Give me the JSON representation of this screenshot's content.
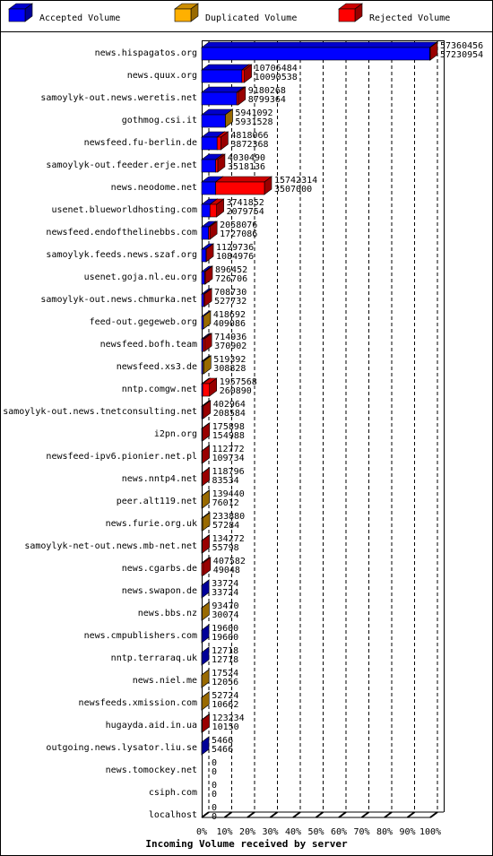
{
  "chart_data": {
    "type": "bar3d-stacked-horizontal",
    "title": "Incoming Volume received by server",
    "categories": [
      "news.hispagatos.org",
      "news.quux.org",
      "samoylyk-out.news.weretis.net",
      "gothmog.csi.it",
      "newsfeed.fu-berlin.de",
      "samoylyk-out.feeder.erje.net",
      "news.neodome.net",
      "usenet.blueworldhosting.com",
      "newsfeed.endofthelinebbs.com",
      "samoylyk.feeds.news.szaf.org",
      "usenet.goja.nl.eu.org",
      "samoylyk-out.news.chmurka.net",
      "feed-out.gegeweb.org",
      "newsfeed.bofh.team",
      "newsfeed.xs3.de",
      "nntp.comgw.net",
      "samoylyk-out.news.tnetconsulting.net",
      "i2pn.org",
      "newsfeed-ipv6.pionier.net.pl",
      "news.nntp4.net",
      "peer.alt119.net",
      "news.furie.org.uk",
      "samoylyk-net-out.news.mb-net.net",
      "news.cgarbs.de",
      "news.swapon.de",
      "news.bbs.nz",
      "news.cmpublishers.com",
      "nntp.terraraq.uk",
      "news.niel.me",
      "newsfeeds.xmission.com",
      "hugayda.aid.in.ua",
      "outgoing.news.lysator.liu.se",
      "news.tomockey.net",
      "csiph.com",
      "localhost"
    ],
    "totals": [
      57360456,
      10706484,
      9180268,
      5941092,
      4818066,
      4030490,
      15742314,
      3741852,
      2058076,
      1129736,
      896452,
      708730,
      418692,
      714936,
      519392,
      1957568,
      402964,
      175898,
      112772,
      118796,
      139440,
      233880,
      134272,
      407582,
      33724,
      93470,
      19600,
      12718,
      17524,
      52724,
      123234,
      5466,
      0,
      0,
      0
    ],
    "series": [
      {
        "name": "Accepted Volume",
        "color": "#0000ff",
        "values": [
          57230954,
          10090538,
          8799364,
          5931528,
          3872368,
          3518136,
          3507000,
          2079754,
          1727086,
          1084976,
          726706,
          527732,
          409086,
          370902,
          308828,
          260890,
          208584,
          154988,
          109734,
          83534,
          76012,
          57284,
          55798,
          49048,
          33724,
          30074,
          19600,
          12718,
          12056,
          10662,
          10150,
          5466,
          0,
          0,
          0
        ]
      },
      {
        "name": "Duplicated Volume",
        "color": "#ffb000",
        "values": [
          0,
          0,
          0,
          9564,
          0,
          0,
          0,
          0,
          0,
          0,
          0,
          0,
          9606,
          0,
          210564,
          0,
          0,
          0,
          0,
          0,
          63428,
          176596,
          0,
          0,
          0,
          63396,
          0,
          0,
          5468,
          42062,
          0,
          0,
          0,
          0,
          0
        ]
      },
      {
        "name": "Rejected Volume",
        "color": "#ff0000",
        "values": [
          129502,
          615946,
          380904,
          0,
          945698,
          512354,
          12235314,
          1662098,
          330990,
          44760,
          169746,
          180998,
          0,
          344034,
          0,
          1696678,
          194380,
          20910,
          3038,
          35262,
          0,
          0,
          78474,
          358534,
          0,
          0,
          0,
          0,
          0,
          0,
          113084,
          0,
          0,
          0,
          0
        ]
      }
    ],
    "xlim": [
      0,
      57360456
    ],
    "xticks": [
      {
        "value": 0,
        "label": "0%"
      },
      {
        "value": 5736045.6,
        "label": "10%"
      },
      {
        "value": 11472091.2,
        "label": "20%"
      },
      {
        "value": 17208136.8,
        "label": "30%"
      },
      {
        "value": 22944182.4,
        "label": "40%"
      },
      {
        "value": 28680228,
        "label": "50%"
      },
      {
        "value": 34416273.6,
        "label": "60%"
      },
      {
        "value": 40152319.2,
        "label": "70%"
      },
      {
        "value": 45888364.8,
        "label": "80%"
      },
      {
        "value": 51624410.4,
        "label": "90%"
      },
      {
        "value": 57360456,
        "label": "100%"
      }
    ],
    "grid": true
  }
}
